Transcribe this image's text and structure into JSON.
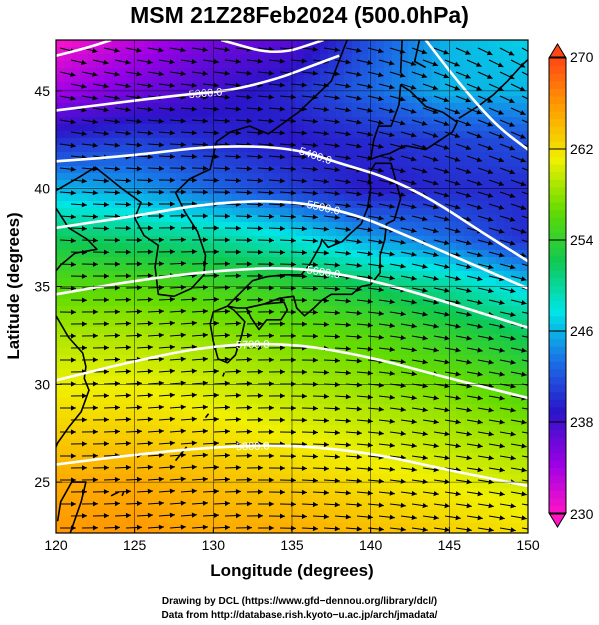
{
  "chart_data": {
    "type": "heatmap",
    "title": "MSM 21Z28Feb2024 (500.0hPa)",
    "xlabel": "Longitude (degrees)",
    "ylabel": "Latitude  (degrees)",
    "xlim": [
      120,
      150
    ],
    "ylim": [
      22.4,
      47.6
    ],
    "xticks": [
      "120",
      "125",
      "130",
      "135",
      "140",
      "145",
      "150"
    ],
    "yticks": [
      "25",
      "30",
      "35",
      "40",
      "45"
    ],
    "grid": true,
    "colorbar": {
      "min": 230,
      "max": 270,
      "ticks": [
        "230",
        "238",
        "246",
        "254",
        "262",
        "270"
      ],
      "colors": [
        "#ff14c8",
        "#9a00e6",
        "#2a14c8",
        "#1a6fe6",
        "#00e6e6",
        "#10c850",
        "#64dc00",
        "#f0f000",
        "#ffa000",
        "#ff4614"
      ]
    },
    "contours": [
      {
        "label": "5300.0",
        "points": [
          [
            120,
            44.0
          ],
          [
            124,
            44.4
          ],
          [
            128,
            44.8
          ],
          [
            131,
            45.0
          ],
          [
            134,
            45.6
          ],
          [
            136,
            46.2
          ],
          [
            138,
            46.8
          ]
        ]
      },
      {
        "label": "5400.0",
        "points": [
          [
            120,
            41.4
          ],
          [
            125,
            41.7
          ],
          [
            130,
            42.2
          ],
          [
            135,
            42.1
          ],
          [
            138,
            41.3
          ],
          [
            141,
            40.6
          ],
          [
            144,
            39.4
          ],
          [
            147,
            37.8
          ],
          [
            150,
            36.3
          ]
        ]
      },
      {
        "label": "5500.0",
        "points": [
          [
            120,
            38.0
          ],
          [
            125,
            38.6
          ],
          [
            130,
            39.3
          ],
          [
            135,
            39.4
          ],
          [
            139,
            38.7
          ],
          [
            142,
            37.7
          ],
          [
            146,
            36.3
          ],
          [
            150,
            34.9
          ]
        ]
      },
      {
        "label": "5600.0",
        "points": [
          [
            120,
            34.6
          ],
          [
            125,
            35.3
          ],
          [
            130,
            35.8
          ],
          [
            135,
            36.0
          ],
          [
            139,
            35.5
          ],
          [
            142,
            34.9
          ],
          [
            146,
            33.9
          ],
          [
            150,
            32.9
          ]
        ]
      },
      {
        "label": "5700.0",
        "points": [
          [
            120,
            30.2
          ],
          [
            125,
            31.2
          ],
          [
            130,
            32.0
          ],
          [
            135,
            32.1
          ],
          [
            140,
            31.4
          ],
          [
            145,
            30.3
          ],
          [
            150,
            29.3
          ]
        ]
      },
      {
        "label": "5800.0",
        "points": [
          [
            120,
            25.9
          ],
          [
            125,
            26.4
          ],
          [
            130,
            26.8
          ],
          [
            135,
            26.9
          ],
          [
            140,
            26.5
          ],
          [
            145,
            25.6
          ],
          [
            150,
            24.8
          ]
        ]
      },
      {
        "label": "",
        "points": [
          [
            120,
            46.8
          ],
          [
            122,
            47.2
          ],
          [
            123.5,
            47.6
          ]
        ]
      },
      {
        "label": "",
        "points": [
          [
            130.5,
            47.6
          ],
          [
            134,
            46.8
          ],
          [
            137,
            47.6
          ]
        ]
      },
      {
        "label": "",
        "points": [
          [
            143.5,
            47.6
          ],
          [
            145.5,
            45.5
          ],
          [
            148,
            43.2
          ],
          [
            150,
            42.0
          ]
        ]
      }
    ],
    "temperature_field": {
      "lats": [
        47.6,
        45,
        42.5,
        40,
        37.5,
        35,
        32.5,
        30,
        27.5,
        25,
        22.4
      ],
      "lons": [
        120,
        125,
        130,
        135,
        140,
        145,
        150
      ],
      "values": [
        [
          230,
          233,
          236,
          237,
          242,
          246,
          247
        ],
        [
          234,
          236,
          238,
          240,
          243,
          246,
          246
        ],
        [
          240,
          241,
          240,
          239,
          240,
          241,
          242
        ],
        [
          246,
          245,
          243,
          241,
          239,
          240,
          240
        ],
        [
          252,
          251,
          250,
          248,
          245,
          243,
          240
        ],
        [
          256,
          256,
          255,
          254,
          252,
          250,
          247
        ],
        [
          259,
          259,
          258,
          257,
          256,
          254,
          252
        ],
        [
          261,
          261,
          260,
          259,
          258,
          257,
          255
        ],
        [
          263,
          263,
          262,
          261,
          260,
          259,
          258
        ],
        [
          265,
          265,
          264,
          263,
          262,
          261,
          260
        ],
        [
          266,
          266,
          265,
          265,
          264,
          263,
          262
        ]
      ]
    },
    "wind_direction": {
      "description_lons": [
        120,
        127.5,
        135,
        142.5,
        150
      ],
      "description_lats": [
        47.6,
        40,
        32.5,
        25,
        22.4
      ],
      "angle_deg_from_east_ccw": [
        [
          -15,
          -10,
          -5,
          -20,
          -30
        ],
        [
          -5,
          0,
          -5,
          -15,
          -20
        ],
        [
          0,
          5,
          0,
          -10,
          -12
        ],
        [
          0,
          5,
          -2,
          -8,
          -10
        ],
        [
          0,
          5,
          -2,
          -8,
          -10
        ]
      ]
    }
  },
  "credits": {
    "line1": "Drawing by DCL (https://www.gfd−dennou.org/library/dcl/)",
    "line2": "Data from http://database.rish.kyoto−u.ac.jp/arch/jmadata/"
  }
}
